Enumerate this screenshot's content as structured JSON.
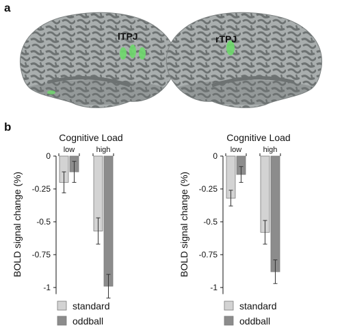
{
  "panels": {
    "a": "a",
    "b": "b"
  },
  "brain": {
    "left_label": "lTPJ",
    "right_label": "rTPJ",
    "cortex_light": "#a9aeae",
    "cortex_dark": "#6d7272",
    "activation_color": "#6ed96b"
  },
  "chart_data": [
    {
      "type": "bar",
      "title": "Cognitive Load",
      "categories": [
        "low",
        "high"
      ],
      "ylabel": "BOLD signal change (%)",
      "ylim": [
        -1.1,
        0
      ],
      "yticks": [
        0,
        -0.25,
        -0.5,
        -0.75,
        -1
      ],
      "ytick_labels": [
        "0",
        "-0.25",
        "-0.5",
        "-0.75",
        "-1"
      ],
      "series": [
        {
          "name": "standard",
          "values": [
            -0.2,
            -0.57
          ],
          "errors": [
            0.08,
            0.1
          ],
          "color": "#d3d3d3"
        },
        {
          "name": "oddball",
          "values": [
            -0.12,
            -0.99
          ],
          "errors": [
            0.08,
            0.09
          ],
          "color": "#8c8c8c"
        }
      ]
    },
    {
      "type": "bar",
      "title": "Cognitive Load",
      "categories": [
        "low",
        "high"
      ],
      "ylabel": "BOLD signal change (%)",
      "ylim": [
        -1.1,
        0
      ],
      "yticks": [
        0,
        -0.25,
        -0.5,
        -0.75,
        -1
      ],
      "ytick_labels": [
        "0",
        "-0.25",
        "-0.5",
        "-0.75",
        "-1"
      ],
      "series": [
        {
          "name": "standard",
          "values": [
            -0.32,
            -0.58
          ],
          "errors": [
            0.06,
            0.09
          ],
          "color": "#d3d3d3"
        },
        {
          "name": "oddball",
          "values": [
            -0.14,
            -0.88
          ],
          "errors": [
            0.06,
            0.09
          ],
          "color": "#8c8c8c"
        }
      ]
    }
  ]
}
